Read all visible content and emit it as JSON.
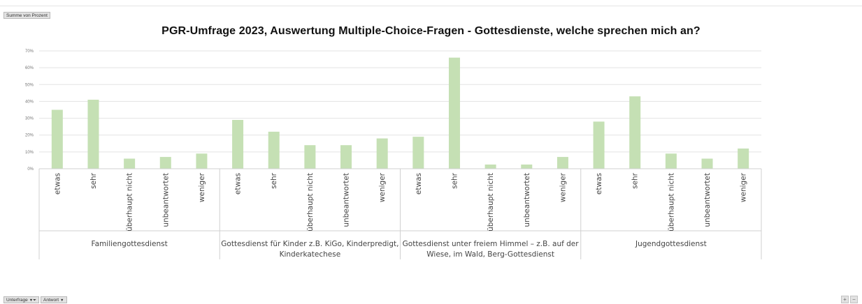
{
  "pivot": {
    "value_field": "Summe von Prozent",
    "filter_fields": [
      {
        "label": "Unterfrage"
      },
      {
        "label": "Antwort"
      }
    ],
    "zoom": {
      "plus": "+",
      "minus": "−"
    }
  },
  "chart_data": {
    "type": "bar",
    "title": "PGR-Umfrage 2023, Auswertung Multiple-Choice-Fragen - Gottesdienste, welche sprechen mich an?",
    "xlabel": "",
    "ylabel": "",
    "ylim": [
      0,
      0.7
    ],
    "yticks": [
      "0%",
      "10%",
      "20%",
      "30%",
      "40%",
      "50%",
      "60%",
      "70%"
    ],
    "grid": true,
    "legend": "none",
    "bar_color": "#c5e0b4",
    "groups": [
      {
        "label": "Familiengottesdienst",
        "categories": [
          "etwas",
          "sehr",
          "überhaupt nicht",
          "unbeantwortet",
          "weniger"
        ],
        "values": [
          0.35,
          0.41,
          0.06,
          0.07,
          0.09
        ]
      },
      {
        "label": "Gottesdienst für Kinder z.B. KiGo, Kinderpredigt, Kinderkatechese",
        "label_lines": [
          "Gottesdienst für Kinder z.B. KiGo, Kinderpredigt,",
          "Kinderkatechese"
        ],
        "categories": [
          "etwas",
          "sehr",
          "überhaupt nicht",
          "unbeantwortet",
          "weniger"
        ],
        "values": [
          0.29,
          0.22,
          0.14,
          0.14,
          0.18
        ]
      },
      {
        "label": "Gottesdienst unter freiem Himmel – z.B. auf der Wiese, im Wald, Berg-Gottesdienst",
        "label_lines": [
          "Gottesdienst unter freiem Himmel – z.B. auf der",
          "Wiese, im Wald, Berg-Gottesdienst"
        ],
        "categories": [
          "etwas",
          "sehr",
          "überhaupt nicht",
          "unbeantwortet",
          "weniger"
        ],
        "values": [
          0.19,
          0.66,
          0.025,
          0.025,
          0.07
        ]
      },
      {
        "label": "Jugendgottesdienst",
        "categories": [
          "etwas",
          "sehr",
          "überhaupt nicht",
          "unbeantwortet",
          "weniger"
        ],
        "values": [
          0.28,
          0.43,
          0.09,
          0.06,
          0.12
        ]
      }
    ]
  }
}
